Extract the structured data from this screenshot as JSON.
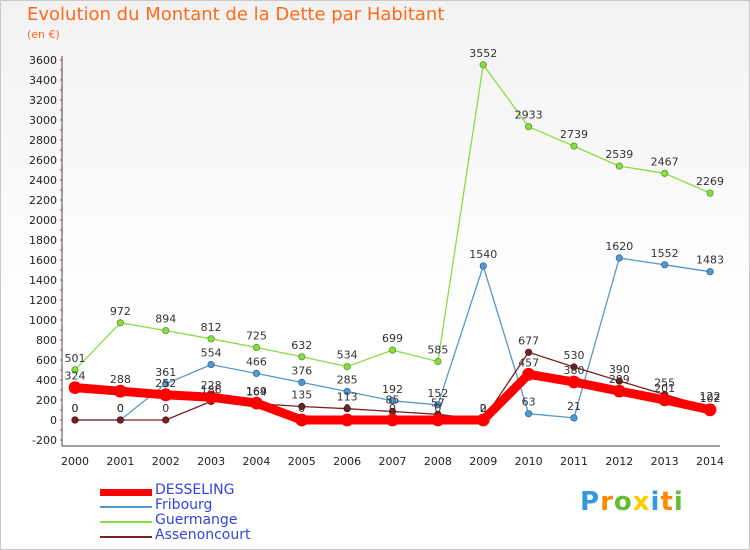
{
  "title": "Evolution du Montant de la Dette par Habitant",
  "unit": "(en €)",
  "logo": "Proxiti",
  "chart_data": {
    "type": "line",
    "x": [
      2000,
      2001,
      2002,
      2003,
      2004,
      2005,
      2006,
      2007,
      2008,
      2009,
      2010,
      2011,
      2012,
      2013,
      2014
    ],
    "ylim": [
      -200,
      3600
    ],
    "yticks": [
      -200,
      0,
      200,
      400,
      600,
      800,
      1000,
      1200,
      1400,
      1600,
      1800,
      2000,
      2200,
      2400,
      2600,
      2800,
      3000,
      3200,
      3400,
      3600
    ],
    "grid": false,
    "legend_position": "bottom-left",
    "series": [
      {
        "name": "DESSELING",
        "color": "#ff0000",
        "values": [
          324,
          288,
          252,
          228,
          169,
          0,
          0,
          0,
          0,
          0,
          457,
          380,
          289,
          201,
          102
        ]
      },
      {
        "name": "Fribourg",
        "color": "#5599cc",
        "values": [
          0,
          0,
          361,
          554,
          466,
          376,
          285,
          192,
          152,
          1540,
          63,
          21,
          1620,
          1552,
          1483
        ]
      },
      {
        "name": "Guermange",
        "color": "#88dd44",
        "values": [
          501,
          972,
          894,
          812,
          725,
          632,
          534,
          699,
          585,
          3552,
          2933,
          2739,
          2539,
          2467,
          2269
        ]
      },
      {
        "name": "Assenoncourt",
        "color": "#772222",
        "values": [
          0,
          0,
          0,
          186,
          164,
          135,
          113,
          85,
          57,
          2,
          677,
          530,
          390,
          255,
          122
        ]
      }
    ]
  }
}
